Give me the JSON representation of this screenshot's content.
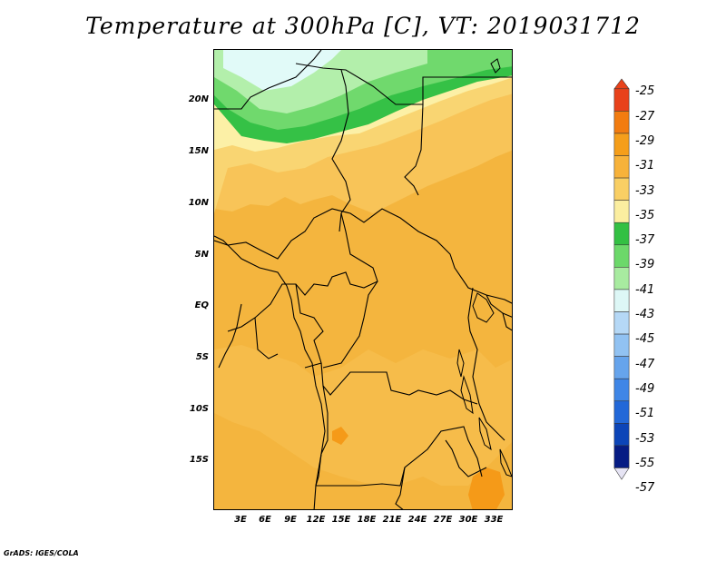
{
  "title": "Temperature at 300hPa [C], VT: 2019031712",
  "footer": "GrADS: IGES/COLA",
  "latitude_labels": [
    "20N",
    "15N",
    "10N",
    "5N",
    "EQ",
    "5S",
    "10S",
    "15S"
  ],
  "longitude_labels": [
    "3E",
    "6E",
    "9E",
    "12E",
    "15E",
    "18E",
    "21E",
    "24E",
    "27E",
    "30E",
    "33E"
  ],
  "colorbar": {
    "labels": [
      "-25",
      "-27",
      "-29",
      "-31",
      "-33",
      "-35",
      "-37",
      "-39",
      "-41",
      "-43",
      "-45",
      "-47",
      "-49",
      "-51",
      "-53",
      "-55",
      "-57"
    ],
    "colors": [
      "#e8421b",
      "#f27c10",
      "#f59e1a",
      "#f7b23a",
      "#f9cf64",
      "#fbeea0",
      "#33c043",
      "#6cd86a",
      "#a8eba0",
      "#ddf7f6",
      "#b5d8f6",
      "#91c2f2",
      "#66a4ec",
      "#3f86e6",
      "#2268d8",
      "#0c45b8",
      "#061c84"
    ]
  },
  "map": {
    "region": "Central Africa",
    "temperature_bands_shown": [
      "-29",
      "-31",
      "-33",
      "-35",
      "-37",
      "-39",
      "-41",
      "-43"
    ]
  }
}
